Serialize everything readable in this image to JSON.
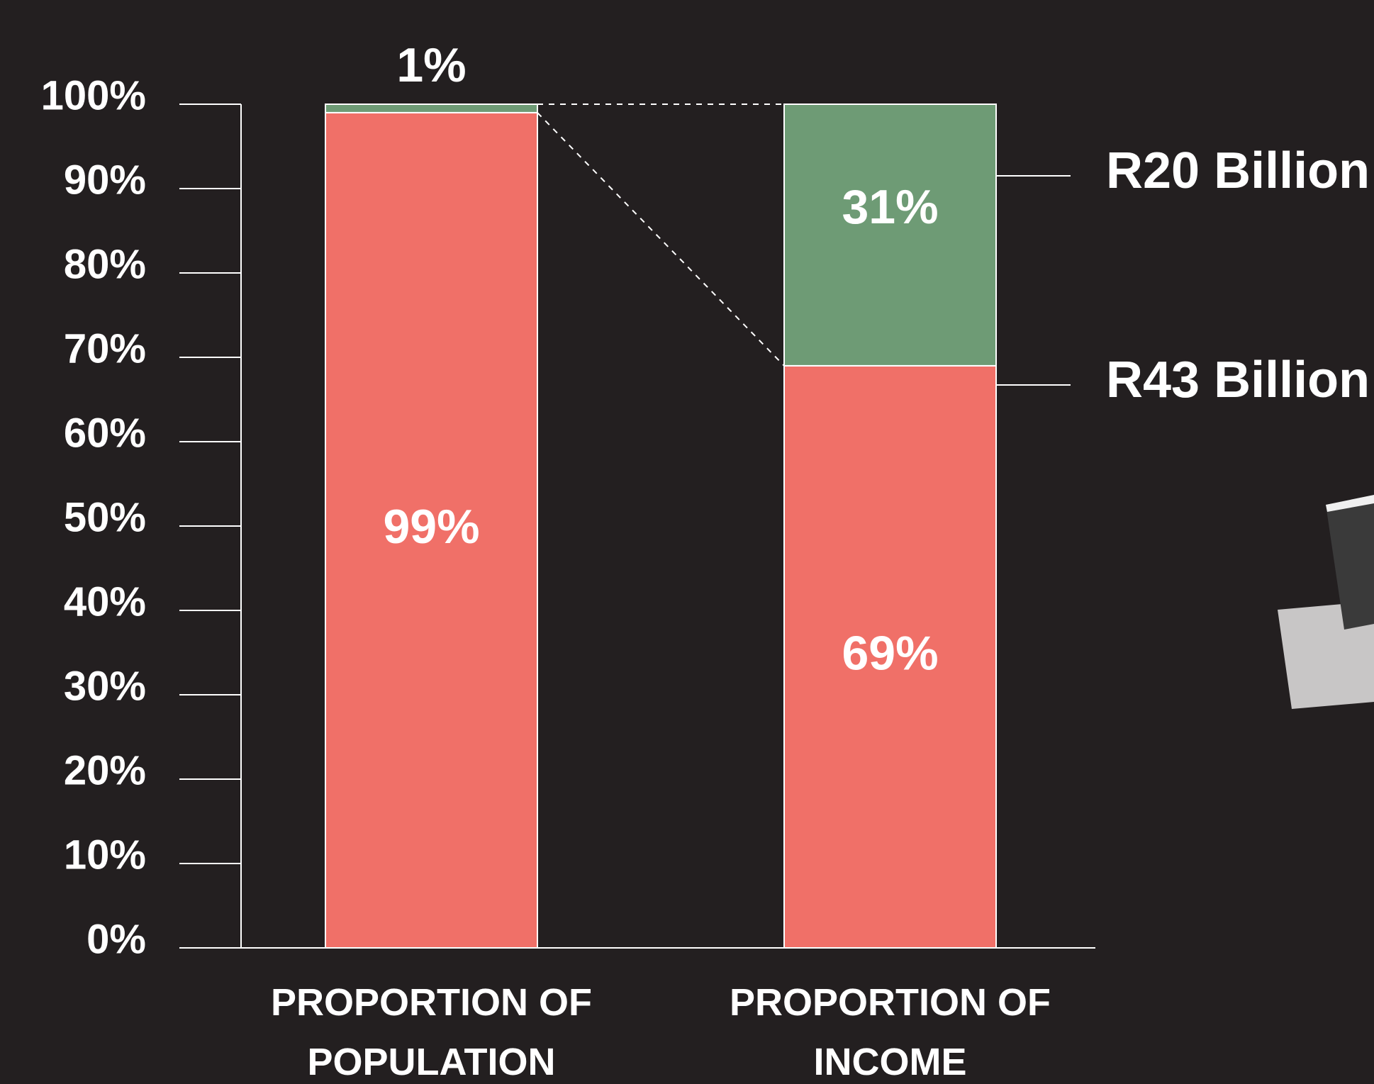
{
  "chart_data": {
    "type": "stacked_bar",
    "categories": [
      "PROPORTION OF POPULATION",
      "PROPORTION OF INCOME"
    ],
    "series": [
      {
        "color": "#f07068",
        "values": [
          99,
          69
        ],
        "value_labels": [
          "99%",
          "69%"
        ]
      },
      {
        "color": "#6e9b75",
        "values": [
          1,
          31
        ],
        "value_labels": [
          "1%",
          "31%"
        ]
      }
    ],
    "annotations": [
      "R20 Billion",
      "R43 Billion"
    ],
    "ylim": [
      0,
      100
    ],
    "yticks": [
      {
        "value": 0,
        "label": "0%"
      },
      {
        "value": 10,
        "label": "10%"
      },
      {
        "value": 20,
        "label": "20%"
      },
      {
        "value": 30,
        "label": "30%"
      },
      {
        "value": 40,
        "label": "40%"
      },
      {
        "value": 50,
        "label": "50%"
      },
      {
        "value": 60,
        "label": "60%"
      },
      {
        "value": 70,
        "label": "70%"
      },
      {
        "value": 80,
        "label": "80%"
      },
      {
        "value": 90,
        "label": "90%"
      },
      {
        "value": 100,
        "label": "100%"
      }
    ]
  }
}
